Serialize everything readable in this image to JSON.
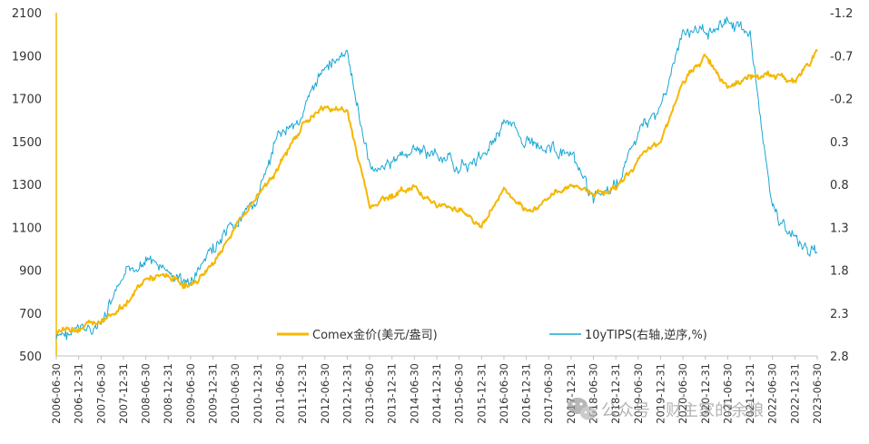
{
  "chart_data": {
    "type": "line",
    "title": "",
    "x_categories": [
      "2006-06-30",
      "2006-12-31",
      "2007-06-30",
      "2007-12-31",
      "2008-06-30",
      "2008-12-31",
      "2009-06-30",
      "2009-12-31",
      "2010-06-30",
      "2010-12-31",
      "2011-06-30",
      "2011-12-31",
      "2012-06-30",
      "2012-12-31",
      "2013-06-30",
      "2013-12-31",
      "2014-06-30",
      "2014-12-31",
      "2015-06-30",
      "2015-12-31",
      "2016-06-30",
      "2016-12-31",
      "2017-06-30",
      "2017-12-31",
      "2018-06-30",
      "2018-12-31",
      "2019-06-30",
      "2019-12-31",
      "2020-06-30",
      "2020-12-31",
      "2021-06-30",
      "2021-12-31",
      "2022-06-30",
      "2022-12-31",
      "2023-06-30"
    ],
    "left_axis": {
      "ylim": [
        500,
        2100
      ],
      "ticks": [
        "500",
        "700",
        "900",
        "1100",
        "1300",
        "1500",
        "1700",
        "1900",
        "2100"
      ]
    },
    "right_axis": {
      "ylim": [
        -1.2,
        2.8
      ],
      "inverted": true,
      "ticks": [
        "-1.2",
        "-0.7",
        "-0.2",
        "0.3",
        "0.8",
        "1.3",
        "1.8",
        "2.3",
        "2.8"
      ]
    },
    "series": [
      {
        "name": "Comex金价(美元/盎司)",
        "axis": "left",
        "color": "#F5B700",
        "values": [
          620,
          630,
          670,
          730,
          860,
          870,
          820,
          930,
          1100,
          1250,
          1390,
          1580,
          1660,
          1640,
          1200,
          1250,
          1290,
          1200,
          1190,
          1100,
          1280,
          1160,
          1240,
          1300,
          1260,
          1280,
          1410,
          1510,
          1770,
          1900,
          1760,
          1800,
          1810,
          1780,
          1920
        ]
      },
      {
        "name": "10yTIPS(右轴,逆序,%)",
        "axis": "right",
        "color": "#1AA7D4",
        "values": [
          2.6,
          2.5,
          2.45,
          1.9,
          1.65,
          1.85,
          1.95,
          1.55,
          1.3,
          0.95,
          0.2,
          0.0,
          -0.6,
          -0.7,
          0.6,
          0.55,
          0.4,
          0.45,
          0.6,
          0.5,
          0.05,
          0.3,
          0.35,
          0.5,
          0.95,
          0.85,
          0.2,
          -0.1,
          -0.95,
          -1.0,
          -1.1,
          -0.95,
          1.1,
          1.45,
          1.6
        ]
      }
    ],
    "legend_position": "bottom-inside",
    "grid": false
  },
  "watermark": {
    "text": "公众号 · 财主家的余粮",
    "icon": "wechat-icon"
  }
}
